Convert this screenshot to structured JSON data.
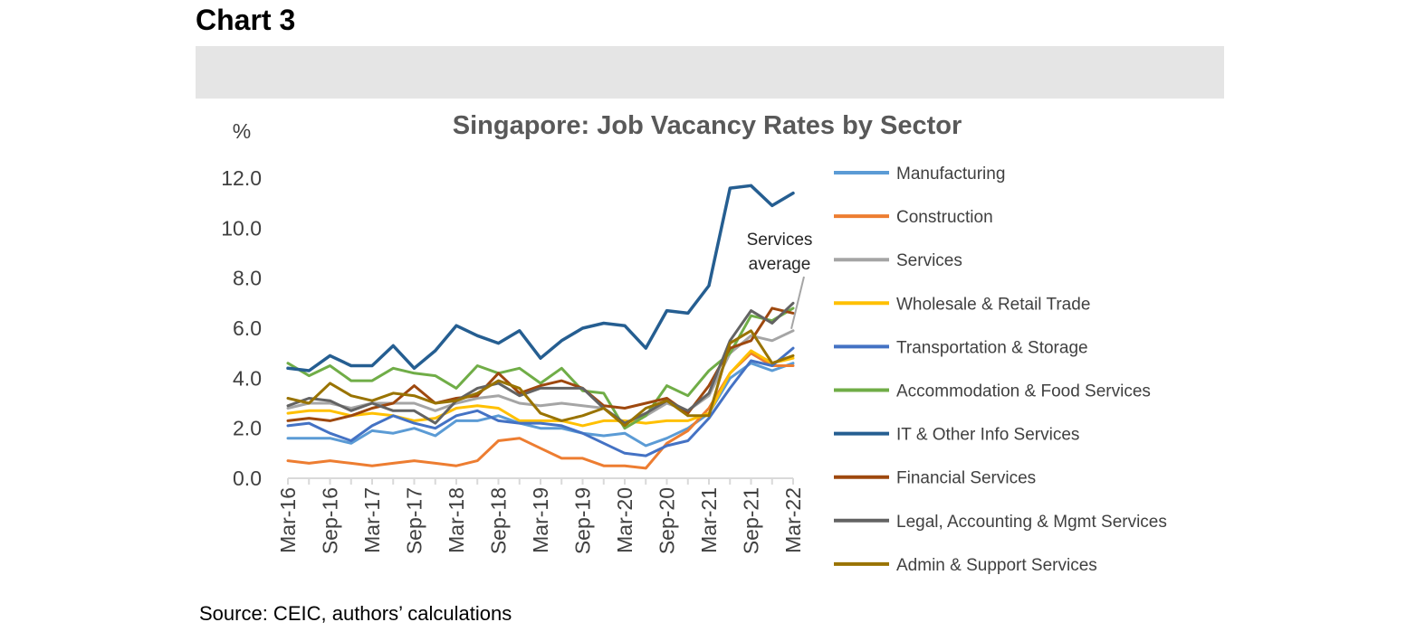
{
  "heading": "Chart 3",
  "source": "Source: CEIC, authors’ calculations",
  "chart_data": {
    "type": "line",
    "title": "Singapore: Job Vacancy Rates by Sector",
    "ylabel": "%",
    "ylim": [
      0,
      12
    ],
    "yticks": [
      "0.0",
      "2.0",
      "4.0",
      "6.0",
      "8.0",
      "10.0",
      "12.0"
    ],
    "xtick_labels": [
      "Mar-16",
      "Sep-16",
      "Mar-17",
      "Sep-17",
      "Mar-18",
      "Sep-18",
      "Mar-19",
      "Sep-19",
      "Mar-20",
      "Sep-20",
      "Mar-21",
      "Sep-21",
      "Mar-22"
    ],
    "x": [
      "Mar-16",
      "Jun-16",
      "Sep-16",
      "Dec-16",
      "Mar-17",
      "Jun-17",
      "Sep-17",
      "Dec-17",
      "Mar-18",
      "Jun-18",
      "Sep-18",
      "Dec-18",
      "Mar-19",
      "Jun-19",
      "Sep-19",
      "Dec-19",
      "Mar-20",
      "Jun-20",
      "Sep-20",
      "Dec-20",
      "Mar-21",
      "Jun-21",
      "Sep-21",
      "Dec-21",
      "Mar-22"
    ],
    "annotation": {
      "line1": "Services",
      "line2": "average",
      "series": "Services"
    },
    "series": [
      {
        "name": "Manufacturing",
        "color": "#5b9bd5",
        "width": 3,
        "values": [
          1.6,
          1.6,
          1.6,
          1.4,
          1.9,
          1.8,
          2.0,
          1.7,
          2.3,
          2.3,
          2.5,
          2.2,
          2.0,
          2.0,
          1.8,
          1.7,
          1.8,
          1.3,
          1.6,
          2.0,
          2.6,
          4.0,
          4.6,
          4.3,
          4.6
        ]
      },
      {
        "name": "Construction",
        "color": "#ed7d31",
        "width": 3,
        "values": [
          0.7,
          0.6,
          0.7,
          0.6,
          0.5,
          0.6,
          0.7,
          0.6,
          0.5,
          0.7,
          1.5,
          1.6,
          1.2,
          0.8,
          0.8,
          0.5,
          0.5,
          0.4,
          1.4,
          1.9,
          2.8,
          4.2,
          5.0,
          4.5,
          4.5
        ]
      },
      {
        "name": "Services",
        "color": "#a5a5a5",
        "width": 3,
        "values": [
          2.8,
          3.0,
          3.0,
          2.8,
          3.0,
          3.0,
          3.0,
          2.7,
          3.0,
          3.2,
          3.3,
          3.0,
          2.9,
          3.0,
          2.9,
          2.8,
          2.2,
          2.5,
          3.0,
          2.7,
          3.3,
          5.0,
          5.7,
          5.5,
          5.9
        ]
      },
      {
        "name": "Wholesale & Retail Trade",
        "color": "#ffc000",
        "width": 3,
        "values": [
          2.6,
          2.7,
          2.7,
          2.5,
          2.6,
          2.5,
          2.3,
          2.4,
          2.8,
          2.9,
          2.8,
          2.3,
          2.3,
          2.3,
          2.1,
          2.3,
          2.3,
          2.2,
          2.3,
          2.3,
          2.6,
          4.2,
          5.1,
          4.6,
          4.8
        ]
      },
      {
        "name": "Transportation & Storage",
        "color": "#4472c4",
        "width": 3,
        "values": [
          2.1,
          2.2,
          1.8,
          1.5,
          2.1,
          2.5,
          2.2,
          2.0,
          2.5,
          2.7,
          2.3,
          2.2,
          2.2,
          2.1,
          1.8,
          1.4,
          1.0,
          0.9,
          1.3,
          1.5,
          2.4,
          3.6,
          4.7,
          4.5,
          5.2
        ]
      },
      {
        "name": "Accommodation & Food Services",
        "color": "#70ad47",
        "width": 3,
        "values": [
          4.6,
          4.1,
          4.5,
          3.9,
          3.9,
          4.4,
          4.2,
          4.1,
          3.6,
          4.5,
          4.2,
          4.4,
          3.8,
          4.4,
          3.5,
          3.4,
          2.0,
          2.5,
          3.7,
          3.3,
          4.3,
          5.0,
          6.5,
          6.3,
          6.8
        ]
      },
      {
        "name": "IT & Other Info Services",
        "color": "#255e91",
        "width": 3.5,
        "values": [
          4.4,
          4.3,
          4.9,
          4.5,
          4.5,
          5.3,
          4.4,
          5.1,
          6.1,
          5.7,
          5.4,
          5.9,
          4.8,
          5.5,
          6.0,
          6.2,
          6.1,
          5.2,
          6.7,
          6.6,
          7.7,
          11.6,
          11.7,
          10.9,
          11.4
        ]
      },
      {
        "name": "Financial Services",
        "color": "#9e480e",
        "width": 3,
        "values": [
          2.3,
          2.4,
          2.3,
          2.5,
          2.8,
          3.0,
          3.7,
          3.0,
          3.2,
          3.3,
          4.2,
          3.4,
          3.7,
          3.9,
          3.6,
          2.9,
          2.8,
          3.0,
          3.2,
          2.6,
          3.7,
          5.2,
          5.5,
          6.8,
          6.6
        ]
      },
      {
        "name": "Legal, Accounting & Mgmt Services",
        "color": "#636363",
        "width": 3,
        "values": [
          2.9,
          3.2,
          3.1,
          2.7,
          3.0,
          2.7,
          2.7,
          2.2,
          3.1,
          3.6,
          3.8,
          3.3,
          3.6,
          3.6,
          3.6,
          2.8,
          2.2,
          2.6,
          3.1,
          2.7,
          3.4,
          5.5,
          6.7,
          6.2,
          7.0
        ]
      },
      {
        "name": "Admin & Support Services",
        "color": "#997300",
        "width": 3,
        "values": [
          3.2,
          3.0,
          3.8,
          3.3,
          3.1,
          3.4,
          3.3,
          3.0,
          3.1,
          3.4,
          3.9,
          3.6,
          2.6,
          2.3,
          2.5,
          2.8,
          2.1,
          2.8,
          3.1,
          2.5,
          2.5,
          5.4,
          5.9,
          4.6,
          4.9
        ]
      }
    ]
  }
}
